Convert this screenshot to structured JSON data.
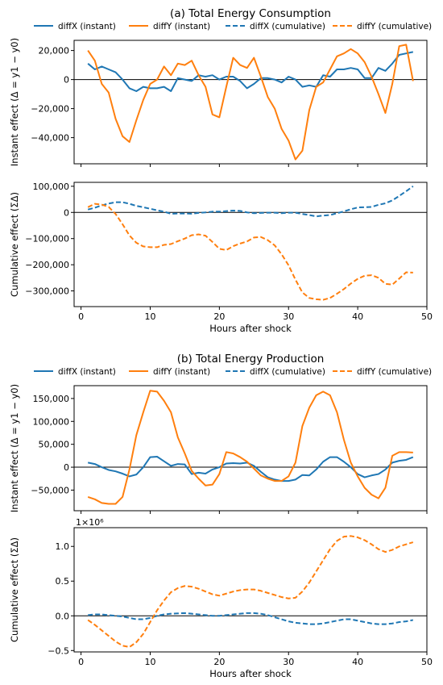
{
  "chart_data": [
    {
      "type": "line",
      "title": "(a) Total Energy Consumption",
      "legend": {
        "placement": "top",
        "entries": [
          "diffX (instant)",
          "diffY (instant)",
          "diffX (cumulative)",
          "diffY (cumulative)"
        ]
      },
      "colors": {
        "diffX": "#1f77b4",
        "diffY": "#ff7f0e"
      },
      "x": [
        1,
        2,
        3,
        4,
        5,
        6,
        7,
        8,
        9,
        10,
        11,
        12,
        13,
        14,
        15,
        16,
        17,
        18,
        19,
        20,
        21,
        22,
        23,
        24,
        25,
        26,
        27,
        28,
        29,
        30,
        31,
        32,
        33,
        34,
        35,
        36,
        37,
        38,
        39,
        40,
        41,
        42,
        43,
        44,
        45,
        46,
        47,
        48
      ],
      "panels": [
        {
          "name": "instant",
          "ylabel": "Instant effect (Δ = y1 − y0)",
          "xlabel": "",
          "ylim": [
            -58000,
            27000
          ],
          "yticks": [
            20000,
            0,
            -20000,
            -40000
          ],
          "ytick_labels": [
            "20,000",
            "0",
            "−20,000",
            "−40,000"
          ],
          "series": [
            {
              "name": "diffX (instant)",
              "style": "solid",
              "values": [
                11000,
                7000,
                9000,
                7000,
                5000,
                0,
                -6000,
                -8000,
                -5000,
                -6000,
                -6000,
                -5000,
                -8000,
                1000,
                0,
                -1000,
                3000,
                2000,
                3000,
                0,
                2000,
                2000,
                -1000,
                -6000,
                -3000,
                1000,
                1000,
                0,
                -2000,
                2000,
                0,
                -5000,
                -4000,
                -5000,
                3000,
                2000,
                7000,
                7000,
                8000,
                7000,
                1000,
                1000,
                8000,
                6000,
                11000,
                17000,
                18000,
                19000
              ]
            },
            {
              "name": "diffY (instant)",
              "style": "solid",
              "values": [
                20000,
                13000,
                -3000,
                -9000,
                -27000,
                -39000,
                -43000,
                -28000,
                -14000,
                -3000,
                0,
                9000,
                3000,
                11000,
                10000,
                13000,
                3000,
                -5000,
                -24000,
                -26000,
                -5000,
                15000,
                10000,
                8000,
                15000,
                2000,
                -12000,
                -20000,
                -34000,
                -42000,
                -55000,
                -49000,
                -21000,
                -5000,
                -2000,
                7000,
                16000,
                18000,
                21000,
                18000,
                12000,
                2000,
                -10000,
                -23000,
                -3000,
                23000,
                24000,
                -1000
              ]
            }
          ]
        },
        {
          "name": "cumulative",
          "ylabel": "Cumulative effect (ΣΔ)",
          "xlabel": "Hours after shock",
          "ylim": [
            -360000,
            115000
          ],
          "yticks": [
            100000,
            0,
            -100000,
            -200000,
            -300000
          ],
          "ytick_labels": [
            "100,000",
            "0",
            "−100,000",
            "−200,000",
            "−300,000"
          ],
          "xlim": [
            -1,
            50
          ],
          "xticks": [
            0,
            10,
            20,
            30,
            40,
            50
          ],
          "series": [
            {
              "name": "diffX (cumulative)",
              "style": "dashed",
              "values": [
                11000,
                18000,
                27000,
                34000,
                39000,
                39000,
                33000,
                25000,
                20000,
                14000,
                8000,
                3000,
                -5000,
                -4000,
                -4000,
                -5000,
                -2000,
                0,
                3000,
                3000,
                5000,
                7000,
                6000,
                0,
                -3000,
                -2000,
                -1000,
                -1000,
                -3000,
                -1000,
                -1000,
                -6000,
                -10000,
                -15000,
                -12000,
                -10000,
                -3000,
                4000,
                12000,
                19000,
                20000,
                21000,
                29000,
                35000,
                46000,
                63000,
                81000,
                100000
              ]
            },
            {
              "name": "diffY (cumulative)",
              "style": "dashed",
              "values": [
                20000,
                33000,
                30000,
                21000,
                -6000,
                -45000,
                -88000,
                -116000,
                -130000,
                -133000,
                -133000,
                -124000,
                -121000,
                -110000,
                -100000,
                -87000,
                -84000,
                -89000,
                -113000,
                -139000,
                -144000,
                -129000,
                -119000,
                -111000,
                -96000,
                -94000,
                -106000,
                -126000,
                -160000,
                -202000,
                -257000,
                -306000,
                -327000,
                -332000,
                -334000,
                -327000,
                -311000,
                -293000,
                -272000,
                -254000,
                -242000,
                -240000,
                -250000,
                -273000,
                -276000,
                -253000,
                -229000,
                -230000
              ]
            }
          ]
        }
      ]
    },
    {
      "type": "line",
      "title": "(b) Total Energy Production",
      "legend": {
        "placement": "top",
        "entries": [
          "diffX (instant)",
          "diffY (instant)",
          "diffX (cumulative)",
          "diffY (cumulative)"
        ]
      },
      "colors": {
        "diffX": "#1f77b4",
        "diffY": "#ff7f0e"
      },
      "x": [
        1,
        2,
        3,
        4,
        5,
        6,
        7,
        8,
        9,
        10,
        11,
        12,
        13,
        14,
        15,
        16,
        17,
        18,
        19,
        20,
        21,
        22,
        23,
        24,
        25,
        26,
        27,
        28,
        29,
        30,
        31,
        32,
        33,
        34,
        35,
        36,
        37,
        38,
        39,
        40,
        41,
        42,
        43,
        44,
        45,
        46,
        47,
        48
      ],
      "panels": [
        {
          "name": "instant",
          "ylabel": "Instant effect (Δ = y1 − y0)",
          "xlabel": "",
          "ylim": [
            -95000,
            178000
          ],
          "yticks": [
            150000,
            100000,
            50000,
            0,
            -50000
          ],
          "ytick_labels": [
            "150,000",
            "100,000",
            "50,000",
            "0",
            "−50,000"
          ],
          "series": [
            {
              "name": "diffX (instant)",
              "style": "solid",
              "values": [
                10000,
                7000,
                0,
                -6000,
                -9000,
                -14000,
                -20000,
                -16000,
                0,
                22000,
                23000,
                13000,
                3000,
                7000,
                6000,
                -15000,
                -12000,
                -14000,
                -5000,
                0,
                8000,
                9000,
                8000,
                10000,
                3000,
                -10000,
                -22000,
                -27000,
                -30000,
                -30000,
                -27000,
                -17000,
                -18000,
                -5000,
                12000,
                22000,
                22000,
                12000,
                0,
                -15000,
                -22000,
                -18000,
                -15000,
                -5000,
                10000,
                14000,
                16000,
                22000
              ]
            },
            {
              "name": "diffY (instant)",
              "style": "solid",
              "values": [
                -65000,
                -70000,
                -78000,
                -80000,
                -80000,
                -65000,
                -5000,
                70000,
                120000,
                167000,
                165000,
                145000,
                120000,
                65000,
                30000,
                -8000,
                -25000,
                -40000,
                -38000,
                -15000,
                33000,
                30000,
                22000,
                12000,
                -3000,
                -18000,
                -25000,
                -30000,
                -30000,
                -20000,
                10000,
                90000,
                130000,
                157000,
                165000,
                157000,
                120000,
                60000,
                10000,
                -20000,
                -45000,
                -60000,
                -68000,
                -45000,
                25000,
                33000,
                33000,
                32000
              ]
            }
          ]
        },
        {
          "name": "cumulative",
          "ylabel": "Cumulative effect (ΣΔ)",
          "xlabel": "Hours after shock",
          "offset_label": "1×10⁶",
          "ylim": [
            -0.52,
            1.27
          ],
          "yticks": [
            1.0,
            0.5,
            0.0,
            -0.5
          ],
          "ytick_labels": [
            "1.0",
            "0.5",
            "0.0",
            "−0.5"
          ],
          "xlim": [
            -1,
            50
          ],
          "xticks": [
            0,
            10,
            20,
            30,
            40,
            50
          ],
          "series": [
            {
              "name": "diffX (cumulative)",
              "style": "dashed",
              "values": [
                0.01,
                0.02,
                0.02,
                0.01,
                0.0,
                -0.01,
                -0.03,
                -0.05,
                -0.05,
                -0.03,
                0.0,
                0.02,
                0.03,
                0.035,
                0.04,
                0.03,
                0.02,
                0.01,
                0.0,
                0.0,
                0.01,
                0.02,
                0.03,
                0.04,
                0.04,
                0.03,
                0.01,
                -0.02,
                -0.05,
                -0.08,
                -0.1,
                -0.11,
                -0.12,
                -0.12,
                -0.11,
                -0.09,
                -0.07,
                -0.05,
                -0.05,
                -0.07,
                -0.09,
                -0.11,
                -0.12,
                -0.12,
                -0.11,
                -0.09,
                -0.08,
                -0.06
              ]
            },
            {
              "name": "diffY (cumulative)",
              "style": "dashed",
              "values": [
                -0.06,
                -0.13,
                -0.21,
                -0.29,
                -0.37,
                -0.43,
                -0.45,
                -0.38,
                -0.26,
                -0.09,
                0.08,
                0.22,
                0.34,
                0.4,
                0.43,
                0.42,
                0.39,
                0.35,
                0.31,
                0.29,
                0.32,
                0.35,
                0.37,
                0.38,
                0.38,
                0.36,
                0.33,
                0.3,
                0.27,
                0.25,
                0.26,
                0.35,
                0.48,
                0.64,
                0.8,
                0.96,
                1.08,
                1.14,
                1.15,
                1.13,
                1.09,
                1.03,
                0.96,
                0.92,
                0.95,
                1.0,
                1.03,
                1.06
              ]
            }
          ]
        }
      ]
    }
  ]
}
